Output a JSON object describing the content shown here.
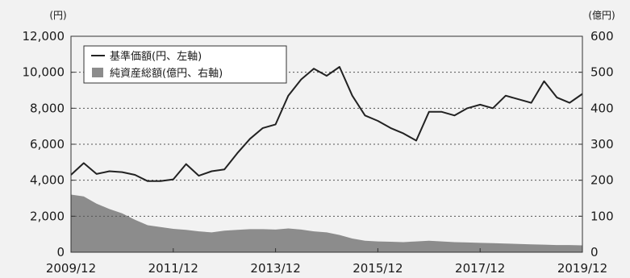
{
  "chart_data": {
    "type": "line+area",
    "left_axis_unit": "(円)",
    "right_axis_unit": "(億円)",
    "left_ylim": [
      0,
      12000
    ],
    "right_ylim": [
      0,
      600
    ],
    "left_ticks": [
      "0",
      "2,000",
      "4,000",
      "6,000",
      "8,000",
      "10,000",
      "12,000"
    ],
    "right_ticks": [
      "0",
      "100",
      "200",
      "300",
      "400",
      "500",
      "600"
    ],
    "x_ticks": [
      "2009/12",
      "2011/12",
      "2013/12",
      "2015/12",
      "2017/12",
      "2019/12"
    ],
    "grid": "horizontal dotted",
    "legend_position": "top-left",
    "colors": {
      "nav_line": "#222222",
      "assets_area": "#8c8c8c"
    },
    "series": [
      {
        "name": "基準価額(円、左軸)",
        "kind": "line",
        "axis": "left",
        "x": [
          "2009/12",
          "2010/03",
          "2010/06",
          "2010/09",
          "2010/12",
          "2011/03",
          "2011/06",
          "2011/09",
          "2011/12",
          "2012/03",
          "2012/06",
          "2012/09",
          "2012/12",
          "2013/03",
          "2013/06",
          "2013/09",
          "2013/12",
          "2014/03",
          "2014/06",
          "2014/09",
          "2014/12",
          "2015/03",
          "2015/06",
          "2015/09",
          "2015/12",
          "2016/03",
          "2016/06",
          "2016/09",
          "2016/12",
          "2017/03",
          "2017/06",
          "2017/09",
          "2017/12",
          "2018/03",
          "2018/06",
          "2018/09",
          "2018/12",
          "2019/03",
          "2019/06",
          "2019/09",
          "2019/12"
        ],
        "values": [
          4300,
          4950,
          4350,
          4500,
          4450,
          4300,
          3950,
          3950,
          4050,
          4900,
          4250,
          4500,
          4600,
          5500,
          6300,
          6900,
          7100,
          8700,
          9600,
          10200,
          9800,
          10300,
          8700,
          7600,
          7300,
          6900,
          6600,
          6200,
          7800,
          7800,
          7600,
          8000,
          8200,
          8000,
          8700,
          8500,
          8300,
          9500,
          8600,
          8300,
          8800
        ]
      },
      {
        "name": "純資産総額(億円、右軸)",
        "kind": "area",
        "axis": "right",
        "x": [
          "2009/12",
          "2010/03",
          "2010/06",
          "2010/09",
          "2010/12",
          "2011/03",
          "2011/06",
          "2011/09",
          "2011/12",
          "2012/03",
          "2012/06",
          "2012/09",
          "2012/12",
          "2013/03",
          "2013/06",
          "2013/09",
          "2013/12",
          "2014/03",
          "2014/06",
          "2014/09",
          "2014/12",
          "2015/03",
          "2015/06",
          "2015/09",
          "2015/12",
          "2016/03",
          "2016/06",
          "2016/09",
          "2016/12",
          "2017/03",
          "2017/06",
          "2017/09",
          "2017/12",
          "2018/03",
          "2018/06",
          "2018/09",
          "2018/12",
          "2019/03",
          "2019/06",
          "2019/09",
          "2019/12"
        ],
        "values": [
          160,
          155,
          135,
          120,
          108,
          90,
          75,
          70,
          65,
          62,
          58,
          55,
          60,
          62,
          64,
          64,
          63,
          66,
          63,
          58,
          55,
          48,
          38,
          32,
          30,
          29,
          28,
          30,
          32,
          30,
          28,
          27,
          26,
          25,
          24,
          23,
          22,
          21,
          20,
          20,
          19
        ]
      }
    ]
  }
}
